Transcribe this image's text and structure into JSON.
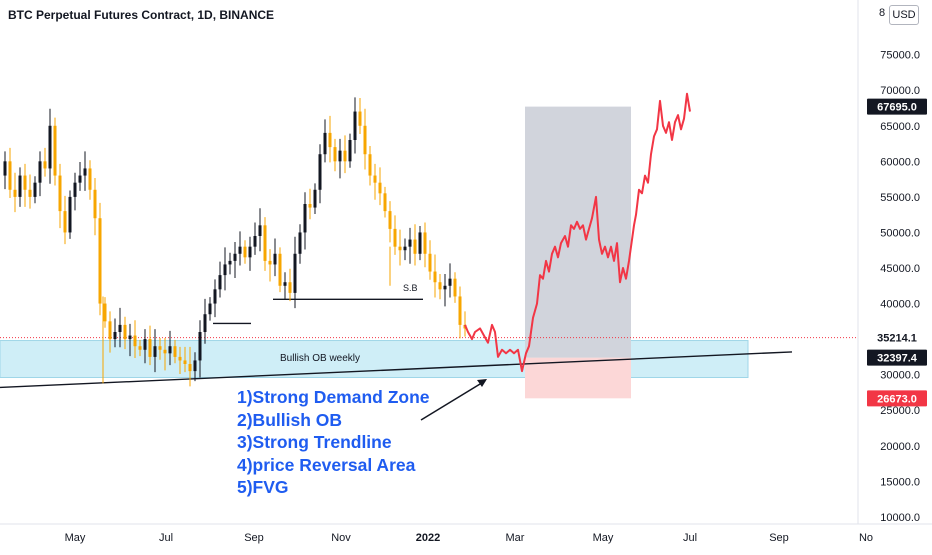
{
  "header": {
    "title": "BTC Perpetual Futures Contract, 1D, BINANCE",
    "currency": "USD"
  },
  "chart_data": {
    "type": "candlestick",
    "title": "BTC Perpetual Futures Contract, 1D, BINANCE",
    "ylim": [
      9000,
      81000
    ],
    "y_ticks": [
      "10000.0",
      "15000.0",
      "20000.0",
      "25000.0",
      "30000.0",
      "35000.0",
      "40000.0",
      "45000.0",
      "50000.0",
      "55000.0",
      "60000.0",
      "65000.0",
      "70000.0",
      "75000.0"
    ],
    "y_top_label": "8",
    "x_ticks": [
      "May",
      "Jul",
      "Sep",
      "Nov",
      "2022",
      "Mar",
      "May",
      "Jul",
      "Sep",
      "No"
    ],
    "price_labels": [
      {
        "text": "67695.0",
        "value": 67695,
        "color": "#131722"
      },
      {
        "text": "35214.1",
        "value": 35214.1,
        "color": "#ffffff"
      },
      {
        "text": "32397.4",
        "value": 32397.4,
        "color": "#131722"
      },
      {
        "text": "26673.0",
        "value": 26673,
        "color": "#f23645"
      }
    ],
    "price_series_close": [
      [
        0,
        58000
      ],
      [
        5,
        60000
      ],
      [
        10,
        56000
      ],
      [
        15,
        55000
      ],
      [
        20,
        58000
      ],
      [
        25,
        56000
      ],
      [
        30,
        55000
      ],
      [
        35,
        57000
      ],
      [
        40,
        60000
      ],
      [
        45,
        59000
      ],
      [
        50,
        65000
      ],
      [
        55,
        58000
      ],
      [
        60,
        53000
      ],
      [
        65,
        50000
      ],
      [
        70,
        55000
      ],
      [
        75,
        57000
      ],
      [
        80,
        58000
      ],
      [
        85,
        59000
      ],
      [
        90,
        56000
      ],
      [
        95,
        52000
      ],
      [
        100,
        40000
      ],
      [
        105,
        37500
      ],
      [
        110,
        35000
      ],
      [
        115,
        36000
      ],
      [
        120,
        37000
      ],
      [
        125,
        35000
      ],
      [
        130,
        35500
      ],
      [
        135,
        34000
      ],
      [
        140,
        33500
      ],
      [
        145,
        35000
      ],
      [
        150,
        32500
      ],
      [
        155,
        34000
      ],
      [
        160,
        33500
      ],
      [
        165,
        33000
      ],
      [
        170,
        34000
      ],
      [
        175,
        32500
      ],
      [
        180,
        32000
      ],
      [
        185,
        31500
      ],
      [
        190,
        30500
      ],
      [
        195,
        32000
      ],
      [
        200,
        36000
      ],
      [
        205,
        38500
      ],
      [
        210,
        40000
      ],
      [
        215,
        42000
      ],
      [
        220,
        44000
      ],
      [
        225,
        45500
      ],
      [
        230,
        46000
      ],
      [
        235,
        47000
      ],
      [
        240,
        48000
      ],
      [
        245,
        46500
      ],
      [
        250,
        48000
      ],
      [
        255,
        49500
      ],
      [
        260,
        51000
      ],
      [
        265,
        46000
      ],
      [
        270,
        45500
      ],
      [
        275,
        47000
      ],
      [
        280,
        42500
      ],
      [
        285,
        43000
      ],
      [
        290,
        41500
      ],
      [
        295,
        47000
      ],
      [
        300,
        50000
      ],
      [
        305,
        54000
      ],
      [
        310,
        53500
      ],
      [
        315,
        56000
      ],
      [
        320,
        61000
      ],
      [
        325,
        64000
      ],
      [
        330,
        62000
      ],
      [
        335,
        60000
      ],
      [
        340,
        61500
      ],
      [
        345,
        60000
      ],
      [
        350,
        63000
      ],
      [
        355,
        67000
      ],
      [
        360,
        65000
      ],
      [
        365,
        61000
      ],
      [
        370,
        58000
      ],
      [
        375,
        57000
      ],
      [
        380,
        55500
      ],
      [
        385,
        53000
      ],
      [
        390,
        50500
      ],
      [
        395,
        48000
      ],
      [
        400,
        47500
      ],
      [
        405,
        48000
      ],
      [
        410,
        49000
      ],
      [
        415,
        47000
      ],
      [
        420,
        50000
      ],
      [
        425,
        47000
      ],
      [
        430,
        44500
      ],
      [
        435,
        43000
      ],
      [
        440,
        42000
      ],
      [
        445,
        42500
      ],
      [
        450,
        43500
      ],
      [
        455,
        41000
      ],
      [
        460,
        37000
      ],
      [
        465,
        36500
      ]
    ],
    "projection_series": [
      [
        465,
        37000
      ],
      [
        468,
        36000
      ],
      [
        472,
        35000
      ],
      [
        475,
        36000
      ],
      [
        480,
        36500
      ],
      [
        484,
        35500
      ],
      [
        488,
        34500
      ],
      [
        492,
        37000
      ],
      [
        495,
        36000
      ],
      [
        498,
        32500
      ],
      [
        502,
        33500
      ],
      [
        506,
        33000
      ],
      [
        510,
        33500
      ],
      [
        514,
        33000
      ],
      [
        518,
        33500
      ],
      [
        522,
        30500
      ],
      [
        526,
        33000
      ],
      [
        529,
        34000
      ],
      [
        533,
        38000
      ],
      [
        537,
        40000
      ],
      [
        540,
        44000
      ],
      [
        543,
        43500
      ],
      [
        546,
        46000
      ],
      [
        549,
        44500
      ],
      [
        552,
        47000
      ],
      [
        555,
        48000
      ],
      [
        558,
        46500
      ],
      [
        561,
        48500
      ],
      [
        565,
        49500
      ],
      [
        568,
        48000
      ],
      [
        571,
        51000
      ],
      [
        574,
        50500
      ],
      [
        577,
        51500
      ],
      [
        580,
        50500
      ],
      [
        583,
        51000
      ],
      [
        586,
        49000
      ],
      [
        589,
        50500
      ],
      [
        592,
        52000
      ],
      [
        596,
        55000
      ],
      [
        599,
        49000
      ],
      [
        602,
        47000
      ],
      [
        605,
        48000
      ],
      [
        608,
        46500
      ],
      [
        611,
        48000
      ],
      [
        614,
        46000
      ],
      [
        617,
        48500
      ],
      [
        620,
        43000
      ],
      [
        623,
        45000
      ],
      [
        626,
        43500
      ],
      [
        629,
        46000
      ],
      [
        632,
        49000
      ],
      [
        634,
        51000
      ],
      [
        636,
        52500
      ],
      [
        639,
        56000
      ],
      [
        642,
        55500
      ],
      [
        645,
        58000
      ],
      [
        648,
        57000
      ],
      [
        651,
        61000
      ],
      [
        654,
        63500
      ],
      [
        657,
        64500
      ],
      [
        660,
        68500
      ],
      [
        663,
        65000
      ],
      [
        666,
        64000
      ],
      [
        669,
        65500
      ],
      [
        672,
        63000
      ],
      [
        675,
        65500
      ],
      [
        678,
        66500
      ],
      [
        681,
        64500
      ],
      [
        684,
        66000
      ],
      [
        687,
        69500
      ],
      [
        690,
        67000
      ]
    ],
    "zones": [
      {
        "name": "Bullish OB weekly",
        "top": 34800,
        "bottom": 29600,
        "x_start": 0,
        "x_end": 748,
        "color": "#cfeef7"
      },
      {
        "name": "target-box",
        "top": 67695,
        "bottom": 32397,
        "x_start": 525,
        "x_end": 631,
        "color": "#d1d4dc"
      },
      {
        "name": "stop-box",
        "top": 32397,
        "bottom": 26673,
        "x_start": 525,
        "x_end": 631,
        "color": "#fcd7d7"
      }
    ],
    "labels": {
      "ob": "Bullish OB weekly",
      "sb": "S.B"
    },
    "notes": [
      "1)Strong Demand Zone",
      "2)Bullish OB",
      "3)Strong Trendline",
      "4)price Reversal Area",
      "5)FVG"
    ]
  }
}
